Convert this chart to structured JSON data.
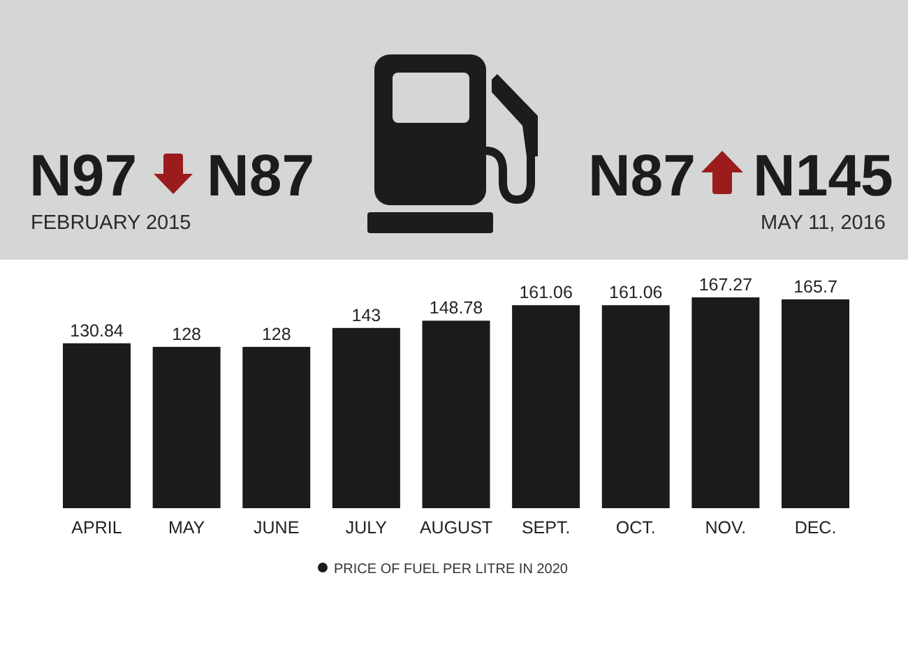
{
  "chart_data": {
    "type": "bar",
    "annotations": [
      "N97",
      "N87",
      "FEBRUARY 2015",
      "N87",
      "N145",
      "MAY 11, 2016"
    ],
    "categories": [
      "APRIL",
      "MAY",
      "JUNE",
      "JULY",
      "AUGUST",
      "SEPT.",
      "OCT.",
      "NOV.",
      "DEC."
    ],
    "series": [
      {
        "name": "PRICE OF FUEL PER LITRE IN 2020",
        "color": "#1b1b1b",
        "values": [
          130.84,
          128,
          128,
          143,
          148.78,
          161.06,
          161.06,
          167.27,
          165.7
        ]
      }
    ],
    "data_labels": true,
    "legend": "bottom"
  }
}
